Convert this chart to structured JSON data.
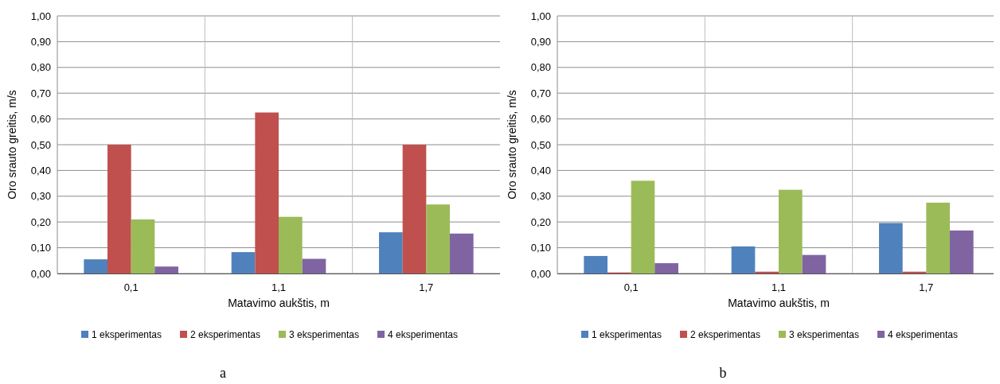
{
  "chart_data": [
    {
      "type": "bar",
      "xlabel": "Matavimo aukštis, m",
      "ylabel": "Oro srauto greitis, m/s",
      "categories": [
        "0,1",
        "1,1",
        "1,7"
      ],
      "series": [
        {
          "name": "1 eksperimentas",
          "color": "#4f81bd",
          "values": [
            0.055,
            0.083,
            0.16
          ]
        },
        {
          "name": "2 eksperimentas",
          "color": "#c0504d",
          "values": [
            0.5,
            0.625,
            0.5
          ]
        },
        {
          "name": "3 eksperimentas",
          "color": "#9bbb59",
          "values": [
            0.21,
            0.22,
            0.268
          ]
        },
        {
          "name": "4 eksperimentas",
          "color": "#8064a2",
          "values": [
            0.027,
            0.057,
            0.155
          ]
        }
      ],
      "ylim": [
        0,
        1
      ],
      "yticks": [
        {
          "value": 0,
          "label": "0,00"
        },
        {
          "value": 0.1,
          "label": "0,10"
        },
        {
          "value": 0.2,
          "label": "0,20"
        },
        {
          "value": 0.3,
          "label": "0,30"
        },
        {
          "value": 0.4,
          "label": "0,40"
        },
        {
          "value": 0.5,
          "label": "0,50"
        },
        {
          "value": 0.6,
          "label": "0,60"
        },
        {
          "value": 0.7,
          "label": "0,70"
        },
        {
          "value": 0.8,
          "label": "0,80"
        },
        {
          "value": 0.9,
          "label": "0,90"
        },
        {
          "value": 1,
          "label": "1,00"
        }
      ],
      "grid": true,
      "legend": "bottom",
      "annotations": [
        "a"
      ]
    },
    {
      "type": "bar",
      "xlabel": "Matavimo aukštis, m",
      "ylabel": "Oro srauto greitis, m/s",
      "categories": [
        "0,1",
        "1,1",
        "1,7"
      ],
      "series": [
        {
          "name": "1 eksperimentas",
          "color": "#4f81bd",
          "values": [
            0.068,
            0.105,
            0.196
          ]
        },
        {
          "name": "2 eksperimentas",
          "color": "#c0504d",
          "values": [
            0.004,
            0.007,
            0.007
          ]
        },
        {
          "name": "3 eksperimentas",
          "color": "#9bbb59",
          "values": [
            0.36,
            0.325,
            0.275
          ]
        },
        {
          "name": "4 eksperimentas",
          "color": "#8064a2",
          "values": [
            0.04,
            0.072,
            0.167
          ]
        }
      ],
      "ylim": [
        0,
        1
      ],
      "yticks": [
        {
          "value": 0,
          "label": "0,00"
        },
        {
          "value": 0.1,
          "label": "0,10"
        },
        {
          "value": 0.2,
          "label": "0,20"
        },
        {
          "value": 0.3,
          "label": "0,30"
        },
        {
          "value": 0.4,
          "label": "0,40"
        },
        {
          "value": 0.5,
          "label": "0,50"
        },
        {
          "value": 0.6,
          "label": "0,60"
        },
        {
          "value": 0.7,
          "label": "0,70"
        },
        {
          "value": 0.8,
          "label": "0,80"
        },
        {
          "value": 0.9,
          "label": "0,90"
        },
        {
          "value": 1,
          "label": "1,00"
        }
      ],
      "grid": true,
      "legend": "bottom",
      "annotations": [
        "b"
      ]
    }
  ]
}
